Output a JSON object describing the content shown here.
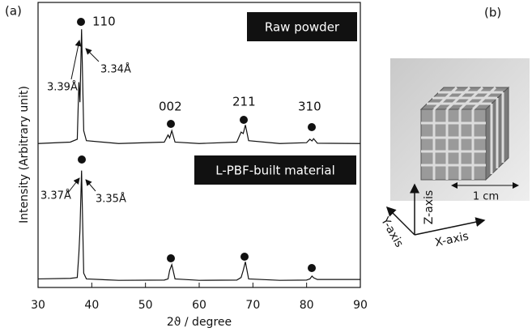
{
  "chart_data": {
    "type": "line",
    "panel_labels": [
      "(a)",
      "(b)"
    ],
    "x_label": "2ϑ / degree",
    "y_label": "Intensity (Arbitrary unit)",
    "xlim": [
      30,
      90
    ],
    "xticks": [
      30,
      40,
      50,
      60,
      70,
      80,
      90
    ],
    "ylim": [
      0,
      100
    ],
    "x": [
      30,
      36,
      37.3,
      37.6,
      37.8,
      38.1,
      38.5,
      39,
      45,
      53.5,
      54.2,
      54.5,
      54.9,
      55.5,
      60,
      67,
      67.8,
      68.2,
      68.6,
      69.2,
      75,
      80,
      80.6,
      81,
      81.3,
      82,
      90
    ],
    "series": [
      {
        "name": "Raw powder",
        "color": "#111111",
        "values": [
          50.5,
          51,
          52,
          72,
          65,
          90.6,
          55,
          51.5,
          50.5,
          51,
          53.5,
          52.5,
          55,
          51,
          50.5,
          51,
          54.5,
          54,
          57,
          51.5,
          50.5,
          50.8,
          52,
          51.4,
          52.2,
          50.6,
          50.5
        ]
      },
      {
        "name": "L-PBF-built material",
        "color": "#111111",
        "values": [
          3,
          3.2,
          3.5,
          12,
          20,
          41,
          5,
          3,
          2.5,
          2.6,
          3,
          6,
          8,
          3,
          2.5,
          2.6,
          3.5,
          6,
          9,
          3,
          2.5,
          2.6,
          3,
          4,
          3.4,
          2.8,
          2.8
        ]
      }
    ],
    "annotations": [
      "110",
      "3.39Å",
      "3.34Å",
      "002",
      "211",
      "310",
      "3.37Å",
      "3.35Å"
    ],
    "photo_labels": [
      "1 cm",
      "X-axis",
      "Y-axis",
      "Z-axis"
    ]
  }
}
